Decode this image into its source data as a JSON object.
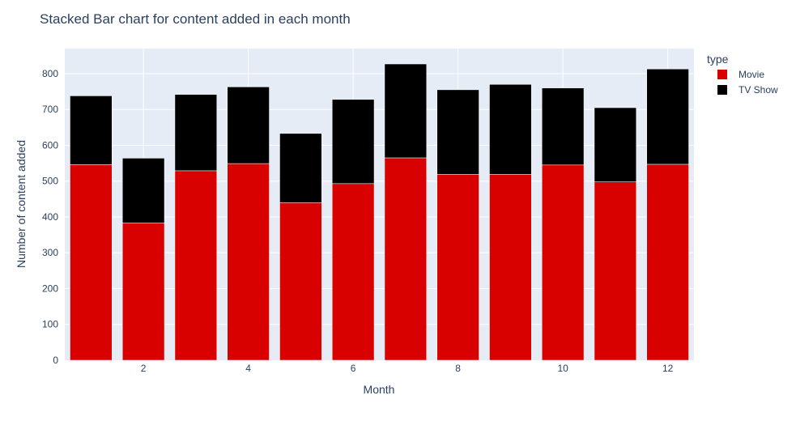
{
  "chart_data": {
    "type": "bar",
    "barmode": "stack",
    "title": "Stacked Bar chart for content added in each month",
    "xlabel": "Month",
    "ylabel": "Number of content added",
    "x": [
      1,
      2,
      3,
      4,
      5,
      6,
      7,
      8,
      9,
      10,
      11,
      12
    ],
    "x_ticks": [
      2,
      4,
      6,
      8,
      10,
      12
    ],
    "xlim": [
      0.5,
      12.5
    ],
    "ylim": [
      0,
      870
    ],
    "y_ticks": [
      0,
      100,
      200,
      300,
      400,
      500,
      600,
      700,
      800
    ],
    "grid": true,
    "legend": {
      "title": "type",
      "placement": "top-right, outside plot"
    },
    "series": [
      {
        "name": "Movie",
        "color": "#d90000",
        "values": [
          546,
          383,
          529,
          549,
          440,
          493,
          565,
          519,
          519,
          545,
          498,
          547
        ]
      },
      {
        "name": "TV Show",
        "color": "#000000",
        "values": [
          192,
          181,
          213,
          214,
          193,
          235,
          262,
          236,
          251,
          215,
          207,
          266
        ]
      }
    ],
    "plot_background": "#e5ecf6"
  }
}
